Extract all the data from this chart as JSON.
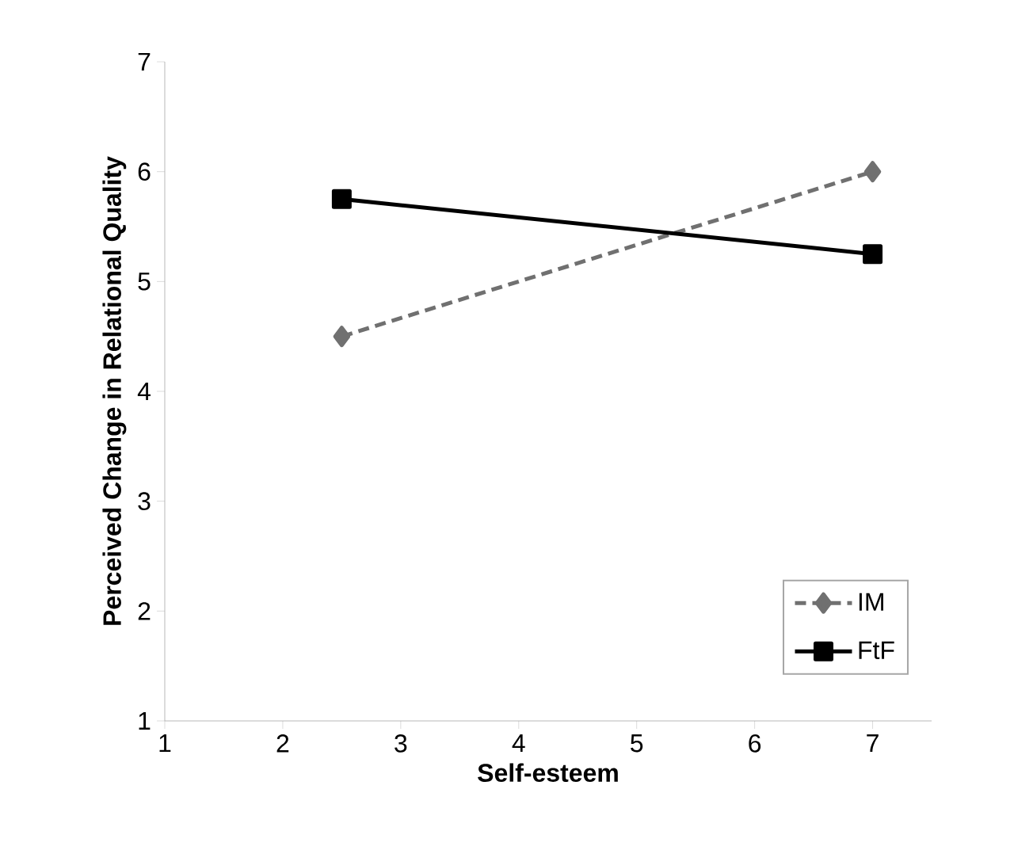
{
  "chart_data": {
    "type": "line",
    "xlabel": "Self-esteem",
    "ylabel": "Perceived Change in Relational Quality",
    "x": [
      2.5,
      7
    ],
    "series": [
      {
        "name": "IM",
        "color": "#707070",
        "values": [
          4.5,
          6
        ],
        "marker": "diamond",
        "line_style": "dashed"
      },
      {
        "name": "FtF",
        "color": "#000000",
        "values": [
          5.75,
          5.25
        ],
        "marker": "square",
        "line_style": "solid"
      }
    ],
    "xlim": [
      1,
      7.5
    ],
    "xticks": [
      1,
      2,
      3,
      4,
      5,
      6,
      7
    ],
    "ylim": [
      1,
      7
    ],
    "yticks": [
      1,
      2,
      3,
      4,
      5,
      6,
      7
    ],
    "grid": false,
    "legend": "bottom right"
  }
}
